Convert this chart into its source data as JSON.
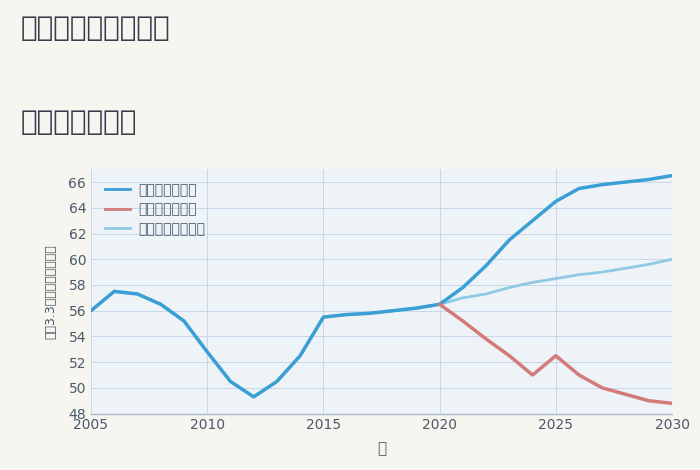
{
  "title_line1": "大阪府枚方市三栗の",
  "title_line2": "土地の価格推移",
  "xlabel": "年",
  "ylabel": "平（3.3㎡）単価（万円）",
  "background_color": "#f7f5f0",
  "plot_bg_color": "#eef3f8",
  "ylim": [
    48,
    67
  ],
  "yticks": [
    48,
    50,
    52,
    54,
    56,
    58,
    60,
    62,
    64,
    66
  ],
  "xlim": [
    2005,
    2030
  ],
  "xticks": [
    2005,
    2010,
    2015,
    2020,
    2025,
    2030
  ],
  "good_scenario": {
    "label": "グッドシナリオ",
    "color": "#3a9fd4",
    "linewidth": 2.5,
    "x": [
      2005,
      2006,
      2007,
      2008,
      2009,
      2010,
      2011,
      2012,
      2013,
      2014,
      2015,
      2016,
      2017,
      2018,
      2019,
      2020,
      2021,
      2022,
      2023,
      2024,
      2025,
      2026,
      2027,
      2028,
      2029,
      2030
    ],
    "y": [
      56.0,
      57.5,
      57.3,
      56.5,
      55.2,
      52.8,
      50.5,
      49.3,
      50.5,
      52.5,
      55.5,
      55.7,
      55.8,
      56.0,
      56.2,
      56.5,
      57.8,
      59.5,
      61.5,
      63.0,
      64.5,
      65.5,
      65.8,
      66.0,
      66.2,
      66.5
    ]
  },
  "bad_scenario": {
    "label": "バッドシナリオ",
    "color": "#d47a7a",
    "linewidth": 2.5,
    "x": [
      2020,
      2021,
      2022,
      2023,
      2024,
      2025,
      2026,
      2027,
      2028,
      2029,
      2030
    ],
    "y": [
      56.5,
      55.2,
      53.8,
      52.5,
      51.0,
      52.5,
      51.0,
      50.0,
      49.5,
      49.0,
      48.8
    ]
  },
  "normal_scenario": {
    "label": "ノーマルシナリオ",
    "color": "#8ecae6",
    "linewidth": 2.0,
    "x": [
      2005,
      2006,
      2007,
      2008,
      2009,
      2010,
      2011,
      2012,
      2013,
      2014,
      2015,
      2016,
      2017,
      2018,
      2019,
      2020,
      2021,
      2022,
      2023,
      2024,
      2025,
      2026,
      2027,
      2028,
      2029,
      2030
    ],
    "y": [
      56.0,
      57.5,
      57.3,
      56.5,
      55.2,
      52.8,
      50.5,
      49.3,
      50.5,
      52.5,
      55.5,
      55.7,
      55.8,
      56.0,
      56.2,
      56.5,
      57.0,
      57.3,
      57.8,
      58.2,
      58.5,
      58.8,
      59.0,
      59.3,
      59.6,
      60.0
    ]
  },
  "title_color": "#3a3a4a",
  "tick_color": "#4a5a6a",
  "grid_color": "#c8d8e8",
  "legend_color": "#4a5a6a",
  "title_fontsize": 20,
  "legend_fontsize": 10
}
